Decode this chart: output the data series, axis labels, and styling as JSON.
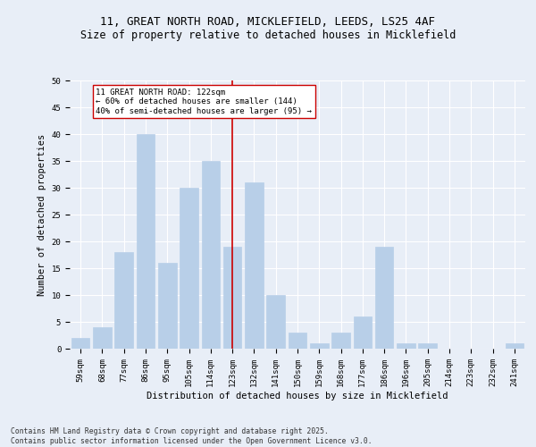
{
  "title_line1": "11, GREAT NORTH ROAD, MICKLEFIELD, LEEDS, LS25 4AF",
  "title_line2": "Size of property relative to detached houses in Micklefield",
  "xlabel": "Distribution of detached houses by size in Micklefield",
  "ylabel": "Number of detached properties",
  "categories": [
    "59sqm",
    "68sqm",
    "77sqm",
    "86sqm",
    "95sqm",
    "105sqm",
    "114sqm",
    "123sqm",
    "132sqm",
    "141sqm",
    "150sqm",
    "159sqm",
    "168sqm",
    "177sqm",
    "186sqm",
    "196sqm",
    "205sqm",
    "214sqm",
    "223sqm",
    "232sqm",
    "241sqm"
  ],
  "values": [
    2,
    4,
    18,
    40,
    16,
    30,
    35,
    19,
    31,
    10,
    3,
    1,
    3,
    6,
    19,
    1,
    1,
    0,
    0,
    0,
    1
  ],
  "bar_color": "#b8cfe8",
  "bar_edgecolor": "#b8cfe8",
  "vline_x": 7,
  "vline_color": "#cc0000",
  "annotation_text": "11 GREAT NORTH ROAD: 122sqm\n← 60% of detached houses are smaller (144)\n40% of semi-detached houses are larger (95) →",
  "annotation_box_color": "#ffffff",
  "annotation_box_edgecolor": "#cc0000",
  "ylim": [
    0,
    50
  ],
  "yticks": [
    0,
    5,
    10,
    15,
    20,
    25,
    30,
    35,
    40,
    45,
    50
  ],
  "background_color": "#e8eef7",
  "grid_color": "#ffffff",
  "footer_line1": "Contains HM Land Registry data © Crown copyright and database right 2025.",
  "footer_line2": "Contains public sector information licensed under the Open Government Licence v3.0.",
  "title_fontsize": 9,
  "subtitle_fontsize": 8.5,
  "axis_label_fontsize": 7.5,
  "tick_fontsize": 6.5,
  "annotation_fontsize": 6.5,
  "footer_fontsize": 5.8
}
